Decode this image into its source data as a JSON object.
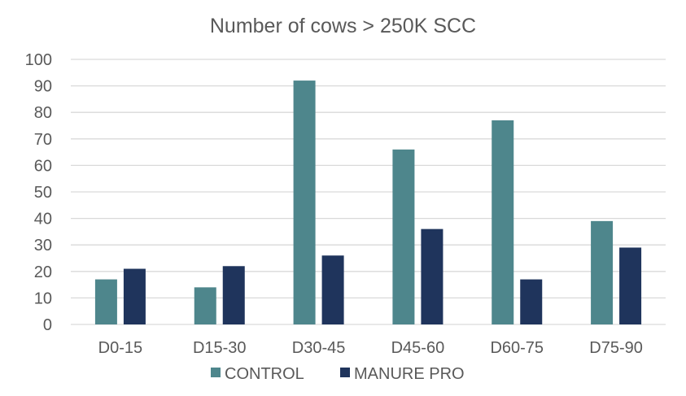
{
  "chart_data": {
    "type": "bar",
    "title": "Number of cows > 250K SCC",
    "xlabel": "",
    "ylabel": "",
    "categories": [
      "D0-15",
      "D15-30",
      "D30-45",
      "D45-60",
      "D60-75",
      "D75-90"
    ],
    "series": [
      {
        "name": "CONTROL",
        "color": "#4e868c",
        "values": [
          17,
          14,
          92,
          66,
          77,
          39
        ]
      },
      {
        "name": "MANURE PRO",
        "color": "#1f345c",
        "values": [
          21,
          22,
          26,
          36,
          17,
          29
        ]
      }
    ],
    "ylim": [
      0,
      100
    ],
    "yticks": [
      "0",
      "10",
      "20",
      "30",
      "40",
      "50",
      "60",
      "70",
      "80",
      "90",
      "100"
    ],
    "grid": true,
    "legend_position": "bottom"
  }
}
